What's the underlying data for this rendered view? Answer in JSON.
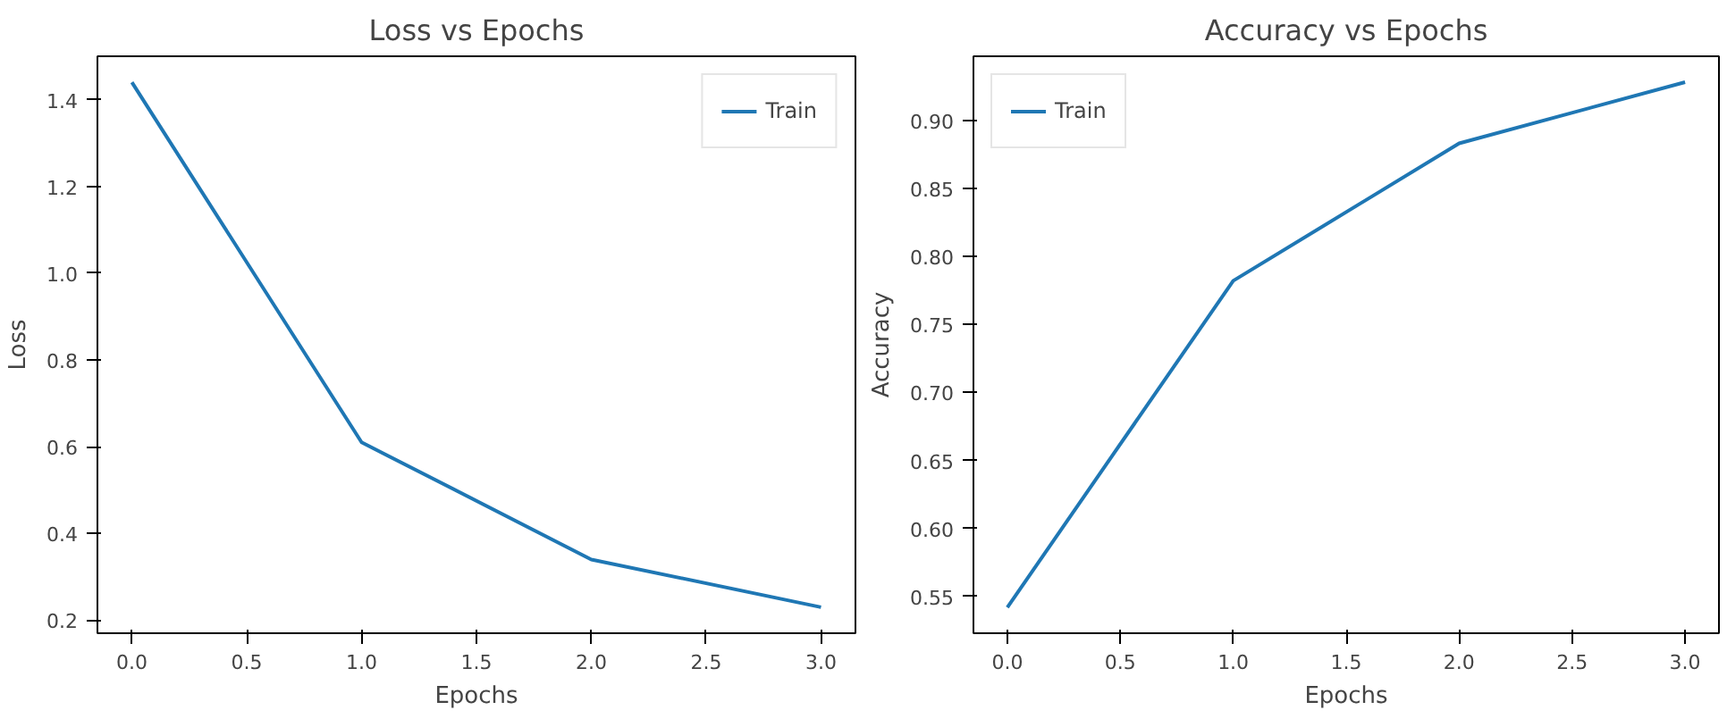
{
  "chart_data": [
    {
      "type": "line",
      "title": "Loss vs Epochs",
      "xlabel": "Epochs",
      "ylabel": "Loss",
      "x": [
        0,
        1,
        2,
        3
      ],
      "series": [
        {
          "name": "Train",
          "color": "#1f77b4",
          "values": [
            1.44,
            0.61,
            0.34,
            0.23
          ]
        }
      ],
      "xlim": [
        -0.15,
        3.15
      ],
      "xticks": [
        {
          "value": 0,
          "label": "0.0"
        },
        0.5,
        {
          "value": 1,
          "label": "1.0"
        },
        1.5,
        {
          "value": 2,
          "label": "2.0"
        },
        2.5,
        {
          "value": 3,
          "label": "3.0"
        }
      ],
      "ylim": [
        0.17,
        1.5
      ],
      "yticks": [
        0.2,
        0.4,
        0.6,
        0.8,
        {
          "value": 1,
          "label": "1.0"
        },
        1.2,
        1.4
      ],
      "legend": "top right"
    },
    {
      "type": "line",
      "title": "Accuracy vs Epochs",
      "xlabel": "Epochs",
      "ylabel": "Accuracy",
      "x": [
        0,
        1,
        2,
        3
      ],
      "series": [
        {
          "name": "Train",
          "color": "#1f77b4",
          "values": [
            0.542,
            0.782,
            0.883,
            0.928
          ]
        }
      ],
      "xlim": [
        -0.15,
        3.15
      ],
      "xticks": [
        {
          "value": 0,
          "label": "0.0"
        },
        0.5,
        {
          "value": 1,
          "label": "1.0"
        },
        1.5,
        {
          "value": 2,
          "label": "2.0"
        },
        2.5,
        {
          "value": 3,
          "label": "3.0"
        }
      ],
      "ylim": [
        0.523,
        0.947
      ],
      "yticks": [
        0.55,
        {
          "value": 0.6,
          "label": "0.60"
        },
        0.65,
        {
          "value": 0.7,
          "label": "0.70"
        },
        0.75,
        {
          "value": 0.8,
          "label": "0.80"
        },
        0.85,
        {
          "value": 0.9,
          "label": "0.90"
        }
      ],
      "legend": "top left"
    }
  ]
}
